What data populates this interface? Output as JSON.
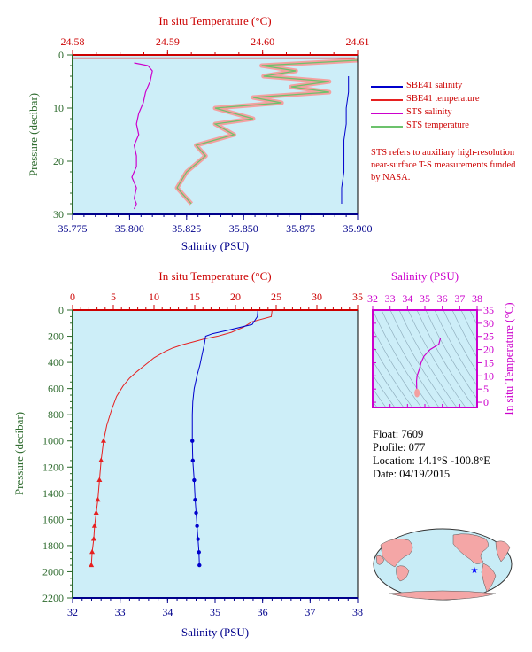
{
  "colors": {
    "plot_bg": "#cdeef8",
    "temperature_axis": "#cc0000",
    "salinity_axis": "#00008b",
    "pressure_axis": "#2e6b2e",
    "sbe41_salinity": "#0000cc",
    "sbe41_temperature": "#e62020",
    "sts_salinity": "#cc00cc",
    "sts_temperature": "#6cc26c",
    "sts_temperature_fill": "#f4a0a0",
    "ts_axis": "#cc00cc",
    "map_land": "#f4a6a6",
    "map_ocean": "#c8ecf6",
    "map_marker": "#0000ff"
  },
  "top_panel": {
    "temp_axis_label": "In situ Temperature (°C)",
    "sal_axis_label": "Salinity (PSU)",
    "pressure_axis_label": "Pressure (decibar)",
    "temp_ticks": [
      "24.58",
      "24.59",
      "24.60",
      "24.61"
    ],
    "sal_ticks": [
      "35.775",
      "35.800",
      "35.825",
      "35.850",
      "35.875",
      "35.900"
    ],
    "pressure_ticks": [
      "0",
      "10",
      "20",
      "30"
    ]
  },
  "legend": [
    {
      "label": "SBE41 salinity",
      "color": "#0000cc"
    },
    {
      "label": "SBE41 temperature",
      "color": "#e62020"
    },
    {
      "label": "STS salinity",
      "color": "#cc00cc"
    },
    {
      "label": "STS temperature",
      "color": "#6cc26c"
    }
  ],
  "note": "STS refers to auxiliary high-resolution near-surface T-S measurements funded by NASA.",
  "bottom_panel": {
    "temp_axis_label": "In situ Temperature (°C)",
    "sal_axis_label": "Salinity (PSU)",
    "pressure_axis_label": "Pressure (decibar)",
    "temp_ticks": [
      "0",
      "5",
      "10",
      "15",
      "20",
      "25",
      "30",
      "35"
    ],
    "sal_ticks": [
      "32",
      "33",
      "34",
      "35",
      "36",
      "37",
      "38"
    ],
    "pressure_ticks": [
      "0",
      "200",
      "400",
      "600",
      "800",
      "1000",
      "1200",
      "1400",
      "1600",
      "1800",
      "2000",
      "2200"
    ]
  },
  "ts_panel": {
    "sal_axis_label": "Salinity (PSU)",
    "temp_axis_label": "In situ Temperature (°C)",
    "sal_ticks": [
      "32",
      "33",
      "34",
      "35",
      "36",
      "37",
      "38"
    ],
    "temp_ticks": [
      "0",
      "5",
      "10",
      "15",
      "20",
      "25",
      "30",
      "35"
    ]
  },
  "float_info": {
    "float": "Float:  7609",
    "profile": "Profile:  077",
    "location": "Location:  14.1°S  -100.8°E",
    "date": "Date:  04/19/2015"
  },
  "chart_data": [
    {
      "type": "line",
      "title": "",
      "xlabel": "Salinity (PSU)",
      "x2label": "In situ Temperature (°C)",
      "ylabel": "Pressure (decibar)",
      "xlim": [
        35.775,
        35.9
      ],
      "x2lim": [
        24.58,
        24.61
      ],
      "ylim": [
        30,
        0
      ],
      "grid": false,
      "legend_position": "right",
      "series": [
        {
          "name": "SBE41 salinity",
          "x": [
            35.896,
            35.896,
            35.895,
            35.895,
            35.894,
            35.894,
            35.894,
            35.893,
            35.893,
            35.893
          ],
          "y": [
            4,
            7,
            10,
            13,
            16,
            19,
            22,
            25,
            27,
            28
          ]
        },
        {
          "name": "SBE41 temperature",
          "x": [
            24.6097,
            24.6097
          ],
          "y": [
            0.5,
            1.0
          ]
        },
        {
          "name": "STS salinity",
          "x": [
            35.802,
            35.808,
            35.81,
            35.809,
            35.807,
            35.806,
            35.804,
            35.803,
            35.804,
            35.802,
            35.803,
            35.803,
            35.801,
            35.803,
            35.802,
            35.803,
            35.802
          ],
          "y": [
            1.5,
            2,
            3,
            5,
            7,
            9,
            11,
            13,
            15,
            17,
            19,
            21,
            23,
            25,
            27,
            28,
            29
          ]
        },
        {
          "name": "STS temperature",
          "x": [
            24.61,
            24.5999,
            24.6035,
            24.6001,
            24.607,
            24.603,
            24.607,
            24.599,
            24.602,
            24.595,
            24.599,
            24.595,
            24.597,
            24.593,
            24.594,
            24.592,
            24.591,
            24.5925
          ],
          "y": [
            1,
            2,
            3,
            4,
            5,
            6,
            7,
            8,
            9,
            10,
            12,
            13,
            15,
            17,
            19,
            22,
            25,
            28
          ]
        }
      ]
    },
    {
      "type": "line",
      "title": "",
      "xlabel": "Salinity (PSU)",
      "x2label": "In situ Temperature (°C)",
      "ylabel": "Pressure (decibar)",
      "xlim": [
        32,
        38
      ],
      "x2lim": [
        0,
        35
      ],
      "ylim": [
        2200,
        0
      ],
      "grid": false,
      "series": [
        {
          "name": "Temperature",
          "x": [
            24.5,
            24.4,
            22.0,
            21.0,
            19.5,
            17.8,
            16.2,
            15.0,
            13.5,
            12.3,
            11.4,
            10.7,
            10.0,
            9.4,
            8.7,
            7.9,
            7.0,
            6.2,
            5.4,
            4.8,
            4.2,
            3.8,
            3.5,
            3.3,
            3.1,
            2.9,
            2.7,
            2.6,
            2.4,
            2.3
          ],
          "y": [
            0,
            50,
            90,
            130,
            170,
            200,
            220,
            240,
            265,
            290,
            315,
            340,
            365,
            395,
            430,
            470,
            520,
            580,
            660,
            760,
            880,
            1000,
            1150,
            1300,
            1450,
            1550,
            1650,
            1750,
            1850,
            1950
          ]
        },
        {
          "name": "Salinity",
          "x": [
            35.9,
            35.89,
            35.78,
            35.2,
            34.95,
            34.8,
            34.78,
            34.72,
            34.68,
            34.62,
            34.56,
            34.53,
            34.52,
            34.52,
            34.53,
            34.56,
            34.58,
            34.6,
            34.62,
            34.64,
            34.66,
            34.67
          ],
          "y": [
            0,
            50,
            110,
            160,
            180,
            200,
            250,
            350,
            420,
            500,
            600,
            700,
            800,
            1000,
            1150,
            1300,
            1450,
            1550,
            1650,
            1750,
            1850,
            1950
          ]
        }
      ]
    },
    {
      "type": "line",
      "title": "",
      "xlabel": "Salinity (PSU)",
      "ylabel": "In situ Temperature (°C)",
      "xlim": [
        32,
        38
      ],
      "ylim": [
        -2,
        35
      ],
      "grid": false,
      "series": [
        {
          "name": "T-S",
          "x": [
            34.6,
            34.58,
            34.55,
            34.53,
            34.52,
            34.55,
            34.68,
            34.78,
            34.95,
            35.3,
            35.8,
            35.9
          ],
          "y": [
            2.3,
            3.0,
            4.0,
            5.5,
            8.0,
            10.0,
            12.5,
            15.0,
            17.5,
            20.0,
            22.0,
            24.5
          ]
        }
      ]
    }
  ]
}
